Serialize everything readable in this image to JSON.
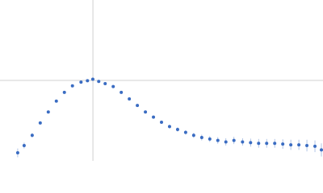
{
  "chart_data": {
    "type": "scatter",
    "x": [
      0.33,
      0.45,
      0.6,
      0.75,
      0.9,
      1.05,
      1.2,
      1.35,
      1.51,
      1.63,
      1.73,
      1.84,
      1.96,
      2.11,
      2.26,
      2.41,
      2.56,
      2.71,
      2.86,
      3.01,
      3.16,
      3.31,
      3.46,
      3.61,
      3.76,
      3.91,
      4.06,
      4.21,
      4.36,
      4.52,
      4.67,
      4.82,
      4.97,
      5.12,
      5.27,
      5.42,
      5.57,
      5.72,
      5.87,
      5.99
    ],
    "series": [
      {
        "color": "#3a6cc2",
        "values": [
          0.11,
          0.21,
          0.35,
          0.52,
          0.67,
          0.82,
          0.94,
          1.03,
          1.08,
          1.1,
          1.12,
          1.09,
          1.06,
          1.02,
          0.94,
          0.85,
          0.76,
          0.67,
          0.6,
          0.53,
          0.47,
          0.43,
          0.39,
          0.35,
          0.32,
          0.3,
          0.28,
          0.26,
          0.28,
          0.26,
          0.25,
          0.24,
          0.24,
          0.24,
          0.23,
          0.22,
          0.22,
          0.21,
          0.2,
          0.15
        ],
        "errors": [
          0.06,
          0.04,
          0.03,
          0.02,
          0.02,
          0.015,
          0.01,
          0.01,
          0.01,
          0.01,
          0.01,
          0.01,
          0.01,
          0.01,
          0.01,
          0.015,
          0.015,
          0.02,
          0.02,
          0.02,
          0.025,
          0.03,
          0.03,
          0.035,
          0.04,
          0.04,
          0.045,
          0.05,
          0.05,
          0.05,
          0.055,
          0.06,
          0.06,
          0.06,
          0.065,
          0.07,
          0.07,
          0.08,
          0.08,
          0.09
        ]
      }
    ],
    "error_color": "#9fb7e0",
    "xlim": [
      0,
      6.02
    ],
    "ylim": [
      0,
      2.208
    ],
    "guides": {
      "x": 1.732,
      "y": 1.104,
      "color": "#d0d0d0"
    }
  }
}
